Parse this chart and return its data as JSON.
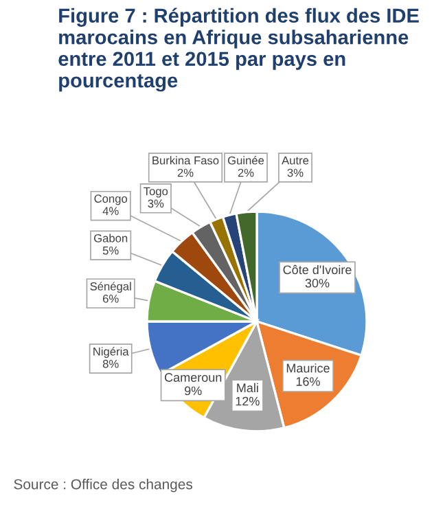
{
  "chart_data": {
    "type": "pie",
    "title": "Figure 7 : Répartition des flux des IDE marocains en Afrique subsaharienne entre 2011 et 2015 par pays en pourcentage",
    "categories": [
      "Côte d'Ivoire",
      "Maurice",
      "Mali",
      "Cameroun",
      "Nigéria",
      "Sénégal",
      "Gabon",
      "Congo",
      "Togo",
      "Burkina Faso",
      "Guinée",
      "Autre"
    ],
    "values": [
      30,
      16,
      12,
      9,
      8,
      6,
      5,
      4,
      3,
      2,
      2,
      3
    ],
    "value_labels": [
      "30%",
      "16%",
      "12%",
      "9%",
      "8%",
      "6%",
      "5%",
      "4%",
      "3%",
      "2%",
      "2%",
      "3%"
    ],
    "colors": [
      "#5b9bd5",
      "#ed7d31",
      "#a5a5a5",
      "#ffc000",
      "#4472c4",
      "#70ad47",
      "#255e91",
      "#9e480e",
      "#636363",
      "#997300",
      "#264478",
      "#43682b"
    ],
    "annotations": [
      "Source : Office des changes"
    ]
  }
}
